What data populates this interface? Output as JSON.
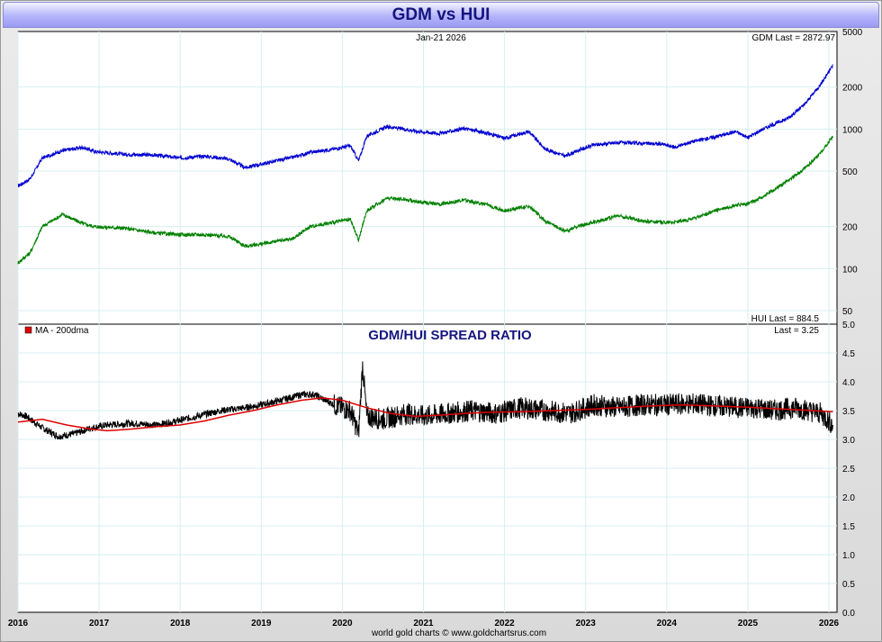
{
  "header": {
    "title": "GDM vs HUI"
  },
  "chart_data": [
    {
      "type": "line",
      "panel": "upper",
      "scale": "log",
      "date_label": "Jan-21  2026",
      "ylim": [
        40,
        5000
      ],
      "y_ticks": [
        5000,
        2000,
        1000,
        500,
        200,
        100,
        50
      ],
      "last_labels": {
        "gdm": "GDM Last = 2872.97",
        "hui": "HUI Last = 884.5"
      },
      "x_ticks": [
        "2016",
        "2017",
        "2018",
        "2019",
        "2020",
        "2021",
        "2022",
        "2023",
        "2024",
        "2025",
        "2026"
      ],
      "colors": {
        "gdm": "#0000d0",
        "hui": "#008000"
      },
      "series": [
        {
          "key": "gdm",
          "x": [
            2016.0,
            2016.15,
            2016.3,
            2016.55,
            2016.8,
            2016.95,
            2017.3,
            2017.7,
            2018.0,
            2018.3,
            2018.6,
            2018.8,
            2019.0,
            2019.4,
            2019.6,
            2019.9,
            2020.1,
            2020.2,
            2020.3,
            2020.55,
            2020.75,
            2020.95,
            2021.2,
            2021.5,
            2021.8,
            2022.0,
            2022.3,
            2022.5,
            2022.75,
            2022.9,
            2023.1,
            2023.4,
            2023.7,
            2023.95,
            2024.1,
            2024.3,
            2024.6,
            2024.85,
            2025.0,
            2025.2,
            2025.5,
            2025.7,
            2025.9,
            2026.05
          ],
          "y": [
            390,
            440,
            620,
            700,
            740,
            690,
            660,
            650,
            620,
            640,
            610,
            530,
            560,
            630,
            680,
            720,
            760,
            590,
            890,
            1040,
            1000,
            960,
            930,
            1010,
            930,
            860,
            960,
            720,
            640,
            700,
            770,
            800,
            790,
            780,
            740,
            810,
            880,
            960,
            870,
            1010,
            1200,
            1500,
            2100,
            2873
          ]
        },
        {
          "key": "hui",
          "x": [
            2016.0,
            2016.15,
            2016.3,
            2016.55,
            2016.8,
            2016.95,
            2017.3,
            2017.7,
            2018.0,
            2018.3,
            2018.6,
            2018.8,
            2019.0,
            2019.4,
            2019.6,
            2019.9,
            2020.1,
            2020.2,
            2020.3,
            2020.55,
            2020.75,
            2020.95,
            2021.2,
            2021.5,
            2021.8,
            2022.0,
            2022.3,
            2022.5,
            2022.75,
            2022.9,
            2023.1,
            2023.4,
            2023.7,
            2023.95,
            2024.1,
            2024.3,
            2024.6,
            2024.85,
            2025.0,
            2025.2,
            2025.5,
            2025.7,
            2025.9,
            2026.05
          ],
          "y": [
            110,
            130,
            200,
            245,
            210,
            200,
            195,
            180,
            175,
            175,
            170,
            145,
            150,
            165,
            200,
            215,
            225,
            160,
            260,
            320,
            315,
            300,
            290,
            310,
            285,
            260,
            280,
            220,
            185,
            200,
            215,
            240,
            220,
            215,
            215,
            225,
            260,
            285,
            290,
            330,
            430,
            520,
            680,
            884.5
          ]
        }
      ]
    },
    {
      "type": "line",
      "panel": "lower",
      "title": "GDM/HUI SPREAD RATIO",
      "ylim": [
        0.0,
        5.0
      ],
      "y_ticks": [
        5.0,
        4.5,
        4.0,
        3.5,
        3.0,
        2.5,
        2.0,
        1.5,
        1.0,
        0.5,
        0.0
      ],
      "last_label": "Last = 3.25",
      "legend": [
        {
          "name": "MA - 200dma",
          "color": "#e00000"
        }
      ],
      "colors": {
        "ratio": "#000000",
        "ma": "#e00000"
      },
      "series": [
        {
          "key": "ratio",
          "x": [
            2016.0,
            2016.1,
            2016.3,
            2016.5,
            2016.7,
            2016.9,
            2017.1,
            2017.4,
            2017.7,
            2017.9,
            2018.2,
            2018.5,
            2018.8,
            2019.0,
            2019.3,
            2019.5,
            2019.65,
            2019.9,
            2020.1,
            2020.2,
            2020.25,
            2020.3,
            2020.5,
            2020.8,
            2021.0,
            2021.3,
            2021.6,
            2021.9,
            2022.2,
            2022.5,
            2022.8,
            2023.1,
            2023.4,
            2023.7,
            2024.0,
            2024.3,
            2024.6,
            2024.9,
            2025.1,
            2025.3,
            2025.6,
            2025.9,
            2026.05
          ],
          "y": [
            3.45,
            3.4,
            3.2,
            3.05,
            3.1,
            3.2,
            3.25,
            3.28,
            3.25,
            3.3,
            3.4,
            3.5,
            3.55,
            3.6,
            3.7,
            3.78,
            3.78,
            3.6,
            3.5,
            3.1,
            4.3,
            3.4,
            3.35,
            3.45,
            3.4,
            3.45,
            3.5,
            3.45,
            3.55,
            3.5,
            3.45,
            3.6,
            3.55,
            3.6,
            3.6,
            3.62,
            3.58,
            3.55,
            3.55,
            3.5,
            3.55,
            3.45,
            3.25
          ]
        },
        {
          "key": "ma",
          "x": [
            2016.0,
            2016.3,
            2016.6,
            2016.9,
            2017.1,
            2017.4,
            2017.7,
            2018.0,
            2018.3,
            2018.6,
            2018.9,
            2019.2,
            2019.5,
            2019.75,
            2020.0,
            2020.3,
            2020.6,
            2020.9,
            2021.2,
            2021.5,
            2021.8,
            2022.2,
            2022.6,
            2023.0,
            2023.4,
            2023.8,
            2024.2,
            2024.6,
            2025.0,
            2025.4,
            2025.8,
            2026.05
          ],
          "y": [
            3.3,
            3.35,
            3.25,
            3.18,
            3.15,
            3.18,
            3.22,
            3.25,
            3.32,
            3.42,
            3.5,
            3.6,
            3.68,
            3.72,
            3.68,
            3.55,
            3.45,
            3.4,
            3.42,
            3.45,
            3.47,
            3.48,
            3.5,
            3.52,
            3.55,
            3.58,
            3.6,
            3.58,
            3.56,
            3.53,
            3.5,
            3.48
          ]
        }
      ]
    }
  ],
  "footer": {
    "credit": "world gold charts © www.goldchartsrus.com"
  }
}
